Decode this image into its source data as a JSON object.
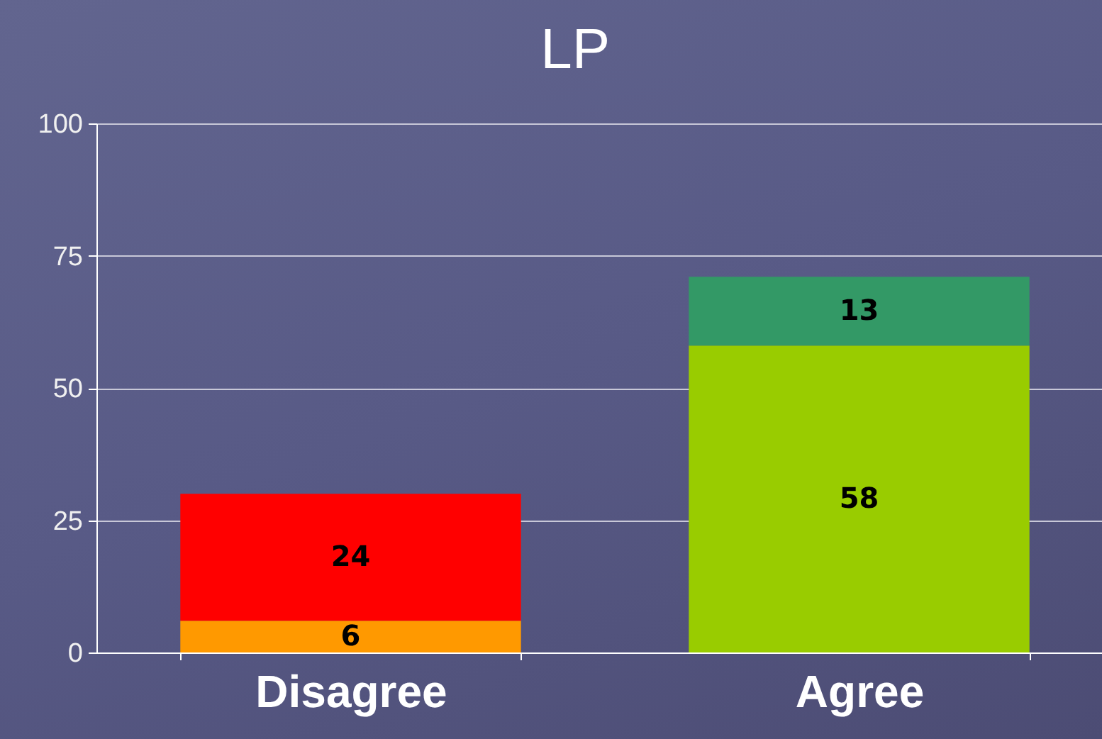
{
  "chart_data": {
    "type": "bar",
    "title": "LP",
    "categories": [
      "Disagree",
      "Agree"
    ],
    "stacked": true,
    "series": [
      {
        "colors": [
          "#ff9900",
          "#99cc00"
        ],
        "values": [
          6,
          58
        ]
      },
      {
        "colors": [
          "#ff0000",
          "#339966"
        ],
        "values": [
          24,
          13
        ]
      }
    ],
    "ylim": [
      0,
      100
    ],
    "yticks": [
      0,
      25,
      50,
      75,
      100
    ],
    "grid": "y",
    "data_labels": true
  }
}
